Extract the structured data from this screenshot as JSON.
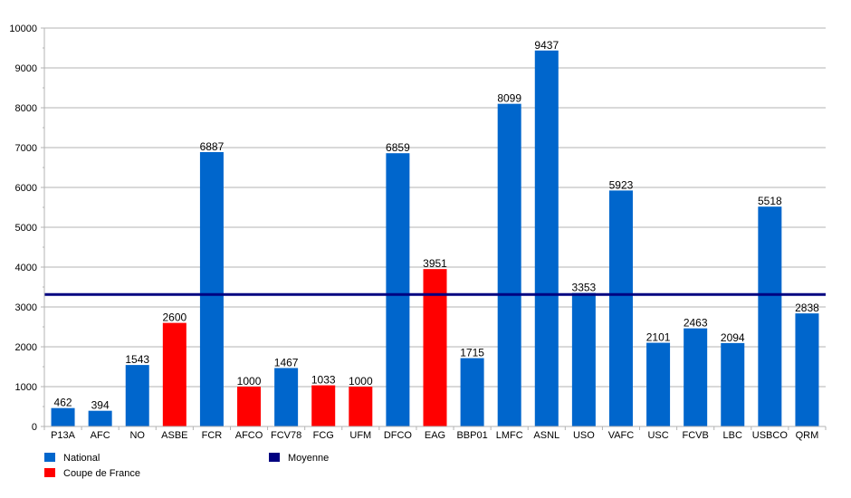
{
  "chart_data": {
    "type": "bar",
    "title": "",
    "xlabel": "",
    "ylabel": "",
    "ylim": [
      0,
      10000
    ],
    "yticks": [
      0,
      1000,
      2000,
      3000,
      4000,
      5000,
      6000,
      7000,
      8000,
      9000,
      10000
    ],
    "grid": true,
    "categories": [
      "P13A",
      "AFC",
      "NO",
      "ASBE",
      "FCR",
      "AFCO",
      "FCV78",
      "FCG",
      "UFM",
      "DFCO",
      "EAG",
      "BBP01",
      "LMFC",
      "ASNL",
      "USO",
      "VAFC",
      "USC",
      "FCVB",
      "LBC",
      "USBCO",
      "QRM"
    ],
    "values": [
      462,
      394,
      1543,
      2600,
      6887,
      1000,
      1467,
      1033,
      1000,
      6859,
      3951,
      1715,
      8099,
      9437,
      3353,
      5923,
      2101,
      2463,
      2094,
      5518,
      2838
    ],
    "competition": [
      "National",
      "National",
      "National",
      "Coupe de France",
      "National",
      "Coupe de France",
      "National",
      "Coupe de France",
      "Coupe de France",
      "National",
      "Coupe de France",
      "National",
      "National",
      "National",
      "National",
      "National",
      "National",
      "National",
      "National",
      "National",
      "National"
    ],
    "average": 3313,
    "legend_placement": "bottom-left",
    "legend": [
      {
        "name": "National",
        "color": "#0066cc"
      },
      {
        "name": "Coupe de France",
        "color": "#ff0000"
      },
      {
        "name": "Moyenne",
        "color": "#000080"
      }
    ]
  }
}
